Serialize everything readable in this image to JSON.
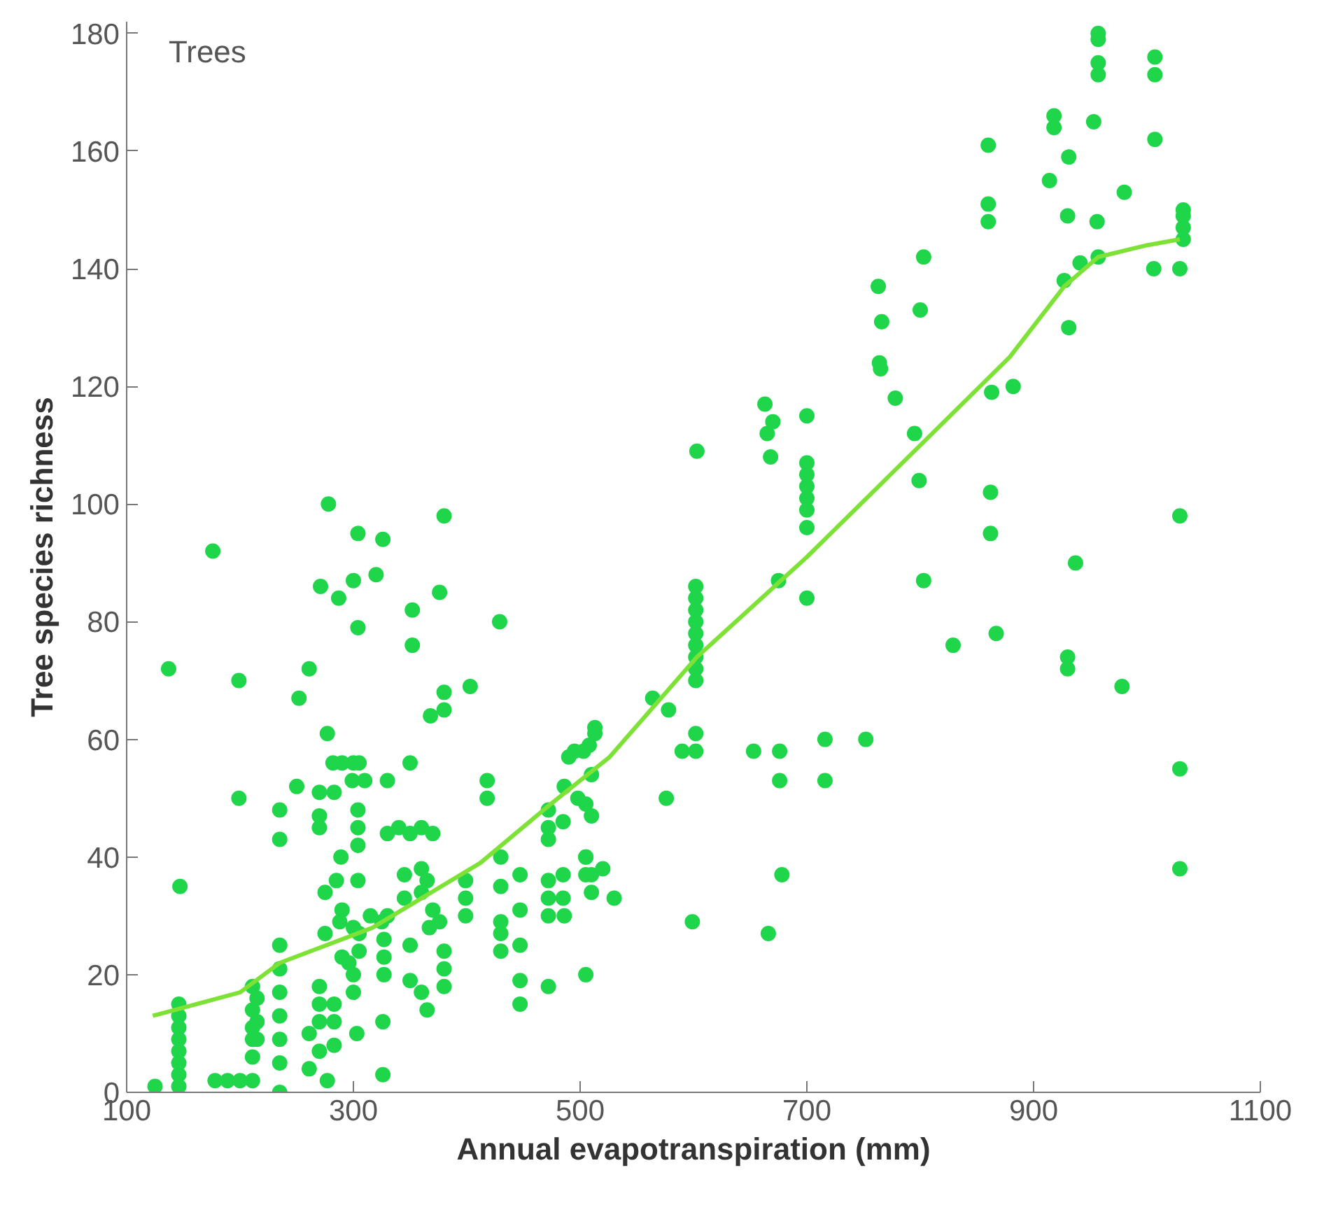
{
  "chart_data": {
    "type": "scatter",
    "xlabel": "Annual evapotranspiration (mm)",
    "ylabel": "Tree species richness",
    "annotations": [
      "Trees"
    ],
    "marker": "circle",
    "xlim": [
      100,
      1100
    ],
    "ylim": [
      0,
      182
    ],
    "xticks": [
      100,
      300,
      500,
      700,
      900,
      1100
    ],
    "yticks": [
      0,
      20,
      40,
      60,
      80,
      100,
      120,
      140,
      160,
      180
    ],
    "series": [
      {
        "color": "#1fd64a",
        "x": [
          278,
          380,
          176,
          304,
          326,
          271,
          300,
          320,
          287,
          304,
          352,
          352,
          376,
          429,
          137,
          199,
          261,
          252,
          380,
          403,
          368,
          380,
          277,
          282,
          290,
          300,
          305,
          350,
          513,
          495,
          508,
          147,
          199,
          250,
          270,
          283,
          299,
          310,
          330,
          235,
          235,
          270,
          270,
          304,
          304,
          304,
          330,
          340,
          350,
          360,
          370,
          418,
          418,
          430,
          289,
          285,
          275,
          304,
          330,
          345,
          345,
          360,
          360,
          370,
          365,
          290,
          315,
          325,
          399,
          399,
          399,
          430,
          430,
          430,
          430,
          447,
          447,
          447,
          447,
          447,
          472,
          472,
          472,
          485,
          472,
          472,
          485,
          485,
          472,
          472,
          486,
          235,
          235,
          235,
          235,
          235,
          235,
          235,
          211,
          211,
          211,
          211,
          211,
          146,
          146,
          146,
          146,
          146,
          146,
          146,
          146,
          125,
          178,
          189,
          200,
          211,
          215,
          215,
          215,
          261,
          261,
          270,
          270,
          270,
          270,
          277,
          283,
          283,
          283,
          303,
          300,
          290,
          296,
          300,
          305,
          305,
          326,
          326,
          327,
          327,
          327,
          350,
          350,
          360,
          365,
          367,
          376,
          380,
          380,
          380,
          275,
          288,
          300,
          603,
          663,
          670,
          665,
          668,
          700,
          700,
          700,
          700,
          700,
          700,
          700,
          765,
          778,
          795,
          799,
          863,
          882,
          862,
          862,
          803,
          829,
          867,
          675,
          700,
          602,
          602,
          602,
          602,
          602,
          602,
          602,
          602,
          602,
          564,
          578,
          602,
          590,
          602,
          653,
          676,
          676,
          716,
          716,
          752,
          513,
          503,
          490,
          510,
          486,
          505,
          498,
          510,
          505,
          505,
          510,
          505,
          510,
          530,
          520,
          505,
          576,
          599,
          678,
          666,
          957,
          957,
          957,
          957,
          1007,
          1007,
          1007,
          918,
          918,
          953,
          931,
          914,
          980,
          930,
          956,
          1032,
          1032,
          1032,
          1032,
          957,
          941,
          927,
          931,
          1006,
          1029,
          1029,
          937,
          930,
          930,
          978,
          1029,
          1029,
          860,
          860,
          860,
          803,
          800,
          763,
          766,
          764
        ],
        "values": [
          100,
          98,
          92,
          95,
          94,
          86,
          87,
          88,
          84,
          79,
          82,
          76,
          85,
          80,
          72,
          70,
          72,
          67,
          68,
          69,
          64,
          65,
          61,
          56,
          56,
          56,
          56,
          56,
          62,
          58,
          59,
          35,
          50,
          52,
          51,
          51,
          53,
          53,
          53,
          48,
          43,
          47,
          45,
          48,
          45,
          42,
          44,
          45,
          44,
          45,
          44,
          53,
          50,
          40,
          40,
          36,
          34,
          36,
          30,
          37,
          33,
          34,
          38,
          31,
          36,
          31,
          30,
          29,
          36,
          33,
          30,
          35,
          29,
          27,
          24,
          37,
          31,
          25,
          19,
          15,
          48,
          45,
          43,
          46,
          36,
          33,
          37,
          33,
          30,
          18,
          30,
          25,
          21,
          17,
          13,
          9,
          5,
          0,
          18,
          14,
          11,
          9,
          6,
          15,
          13,
          11,
          9,
          7,
          5,
          3,
          1,
          1,
          2,
          2,
          2,
          2,
          16,
          12,
          9,
          10,
          4,
          18,
          15,
          12,
          7,
          2,
          15,
          12,
          8,
          10,
          17,
          23,
          22,
          20,
          27,
          24,
          12,
          3,
          26,
          23,
          20,
          25,
          19,
          17,
          14,
          28,
          29,
          24,
          21,
          18,
          27,
          29,
          28,
          109,
          117,
          114,
          112,
          108,
          115,
          107,
          105,
          103,
          101,
          99,
          96,
          123,
          118,
          112,
          104,
          119,
          120,
          102,
          95,
          87,
          76,
          78,
          87,
          84,
          86,
          84,
          82,
          80,
          78,
          76,
          74,
          72,
          70,
          67,
          65,
          61,
          58,
          58,
          58,
          58,
          53,
          60,
          53,
          60,
          61,
          58,
          57,
          54,
          52,
          49,
          50,
          47,
          40,
          40,
          37,
          37,
          34,
          33,
          38,
          20,
          50,
          29,
          37,
          27,
          180,
          179,
          175,
          173,
          176,
          173,
          162,
          166,
          164,
          165,
          159,
          155,
          153,
          149,
          148,
          150,
          149,
          147,
          145,
          142,
          141,
          138,
          130,
          140,
          140,
          98,
          90,
          74,
          72,
          69,
          55,
          38,
          161,
          151,
          148,
          142,
          133,
          137,
          131,
          124
        ]
      },
      {
        "type": "line",
        "color": "#7ee236",
        "x": [
          123,
          200,
          235,
          317,
          412,
          474,
          526,
          603,
          700,
          800,
          879,
          927,
          957,
          1000,
          1029
        ],
        "values": [
          13,
          17,
          22,
          28,
          39,
          49,
          57,
          74,
          91,
          110,
          125,
          137,
          142,
          144,
          145
        ],
        "marker": "none"
      }
    ]
  }
}
